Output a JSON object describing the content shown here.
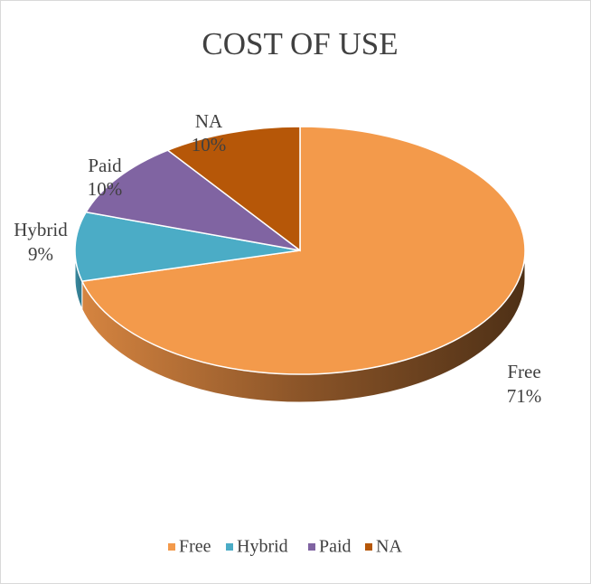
{
  "chart_data": {
    "type": "pie",
    "title": "COST OF USE",
    "categories": [
      "Free",
      "Hybrid",
      "Paid",
      "NA"
    ],
    "values": [
      71,
      9,
      10,
      10
    ],
    "value_labels": [
      "71%",
      "9%",
      "10%",
      "10%"
    ],
    "colors": [
      "#f39a4b",
      "#4bacc6",
      "#8064a2",
      "#b65708"
    ],
    "legend": "bottom"
  }
}
